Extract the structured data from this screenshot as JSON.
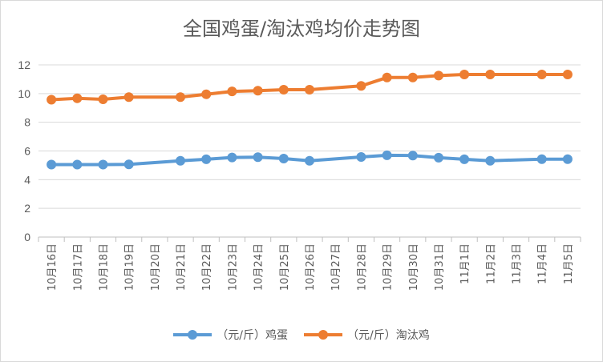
{
  "chart_data": {
    "type": "line",
    "title": "全国鸡蛋/淘汰鸡均价走势图",
    "categories": [
      "10月16日",
      "10月17日",
      "10月18日",
      "10月19日",
      "10月20日",
      "10月21日",
      "10月22日",
      "10月23日",
      "10月24日",
      "10月25日",
      "10月26日",
      "10月27日",
      "10月28日",
      "10月29日",
      "10月30日",
      "10月31日",
      "11月1日",
      "11月2日",
      "11月3日",
      "11月4日",
      "11月5日"
    ],
    "series": [
      {
        "name": "（元/斤）鸡蛋",
        "color": "#5b9bd5",
        "values": [
          5.05,
          5.05,
          5.05,
          5.07,
          null,
          5.32,
          5.42,
          5.55,
          5.57,
          5.47,
          5.32,
          null,
          5.58,
          5.7,
          5.68,
          5.53,
          5.42,
          5.32,
          null,
          5.43,
          5.43
        ]
      },
      {
        "name": "（元/斤）淘汰鸡",
        "color": "#ed7d31",
        "values": [
          9.57,
          9.67,
          9.6,
          9.75,
          null,
          9.75,
          9.95,
          10.15,
          10.2,
          10.27,
          10.27,
          null,
          10.53,
          11.12,
          11.12,
          11.25,
          11.33,
          11.33,
          null,
          11.33,
          11.33
        ]
      }
    ],
    "yticks": [
      0,
      2,
      4,
      6,
      8,
      10,
      12
    ],
    "ylim": [
      0,
      13
    ],
    "xlabel": "",
    "ylabel": "",
    "grid": true,
    "legend_position": "bottom"
  }
}
